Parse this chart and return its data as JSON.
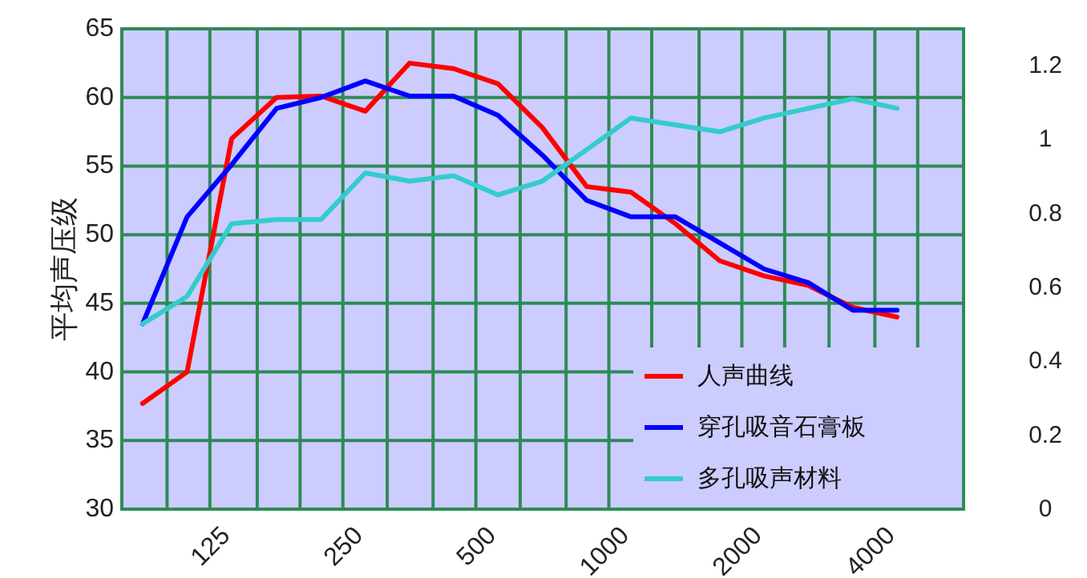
{
  "chart_data": {
    "type": "line",
    "ylabel": "平均声压级",
    "x": [
      88,
      111,
      140,
      177,
      223,
      281,
      354,
      445,
      561,
      707,
      891,
      1122,
      1414,
      1782,
      2245,
      2828,
      3564,
      4490
    ],
    "series": [
      {
        "name": "人声曲线",
        "color": "#ff0000",
        "values": [
          37.7,
          40.0,
          57.0,
          60.0,
          60.1,
          59.0,
          62.5,
          62.1,
          61.0,
          57.8,
          53.5,
          53.1,
          50.8,
          48.1,
          47.0,
          46.3,
          44.7,
          44.0
        ]
      },
      {
        "name": "穿孔吸音石膏板",
        "color": "#0000ff",
        "values": [
          43.5,
          51.3,
          55.1,
          59.2,
          60.0,
          61.2,
          60.1,
          60.1,
          58.7,
          55.8,
          52.5,
          51.3,
          51.3,
          49.4,
          47.5,
          46.5,
          44.5,
          44.5
        ]
      },
      {
        "name": "多孔吸声材料",
        "color": "#33cccc",
        "values": [
          43.5,
          45.5,
          50.8,
          51.1,
          51.1,
          54.5,
          53.9,
          54.3,
          52.9,
          53.9,
          56.2,
          58.5,
          58.0,
          57.5,
          58.5,
          59.2,
          59.9,
          59.2
        ]
      }
    ],
    "log": "x",
    "xlim": [
      79,
      6350
    ],
    "xticks": [
      {
        "value": 100,
        "label": null
      },
      125,
      {
        "value": 160,
        "label": null
      },
      {
        "value": 200,
        "label": null
      },
      250,
      {
        "value": 315,
        "label": null
      },
      {
        "value": 400,
        "label": null
      },
      500,
      {
        "value": 630,
        "label": null
      },
      {
        "value": 800,
        "label": null
      },
      1000,
      {
        "value": 1250,
        "label": null
      },
      {
        "value": 1600,
        "label": null
      },
      2000,
      {
        "value": 2500,
        "label": null
      },
      {
        "value": 3150,
        "label": null
      },
      4000,
      {
        "value": 5000,
        "label": null
      }
    ],
    "ylim": [
      30,
      65
    ],
    "yticks": [
      30,
      35,
      40,
      45,
      50,
      55,
      60,
      65
    ],
    "y2lim": [
      0,
      1.3
    ],
    "y2ticks": [
      0,
      0.2,
      0.4,
      0.6,
      0.8,
      1,
      1.2
    ],
    "grid": true,
    "legend": "bottom right",
    "marker": "none",
    "line_style": "solid"
  }
}
